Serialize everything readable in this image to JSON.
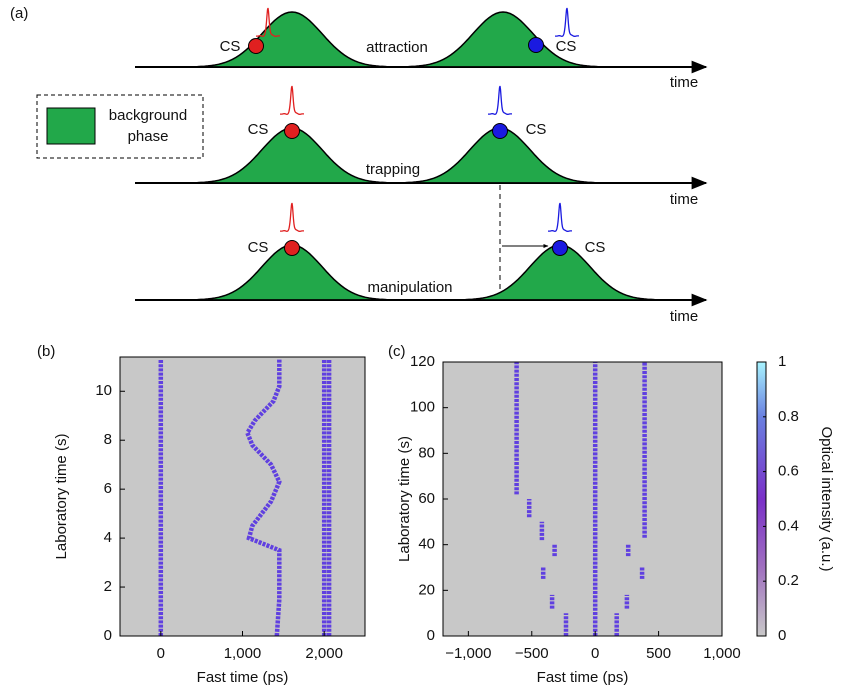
{
  "diagram": {
    "panel_label": "(a)",
    "legend_lines": [
      "background",
      "phase"
    ],
    "rows": [
      {
        "label": "attraction",
        "time_label": "time",
        "cs_labels": [
          "CS",
          "CS"
        ]
      },
      {
        "label": "trapping",
        "time_label": "time",
        "cs_labels": [
          "CS",
          "CS"
        ]
      },
      {
        "label": "manipulation",
        "time_label": "time",
        "cs_labels": [
          "CS",
          "CS"
        ]
      }
    ]
  },
  "chart_data": [
    {
      "type": "line",
      "panel_label": "(b)",
      "xlabel": "Fast time (ps)",
      "ylabel": "Laboratory time (s)",
      "xlim": [
        -500,
        2500
      ],
      "ylim": [
        0,
        11.4
      ],
      "xticks": [
        0,
        {
          "value": 1000,
          "label": "1,000"
        },
        {
          "value": 2000,
          "label": "2,000"
        }
      ],
      "yticks": [
        0,
        2,
        4,
        6,
        8,
        10
      ],
      "series": [
        {
          "color": "#6040e0",
          "x": [
            0,
            0
          ],
          "y": [
            0,
            11.3
          ]
        },
        {
          "color": "#6040e0",
          "x": [
            1420,
            1450,
            1450,
            1080,
            1120,
            1350,
            1450,
            1350,
            1120,
            1060,
            1150,
            1380,
            1450,
            1450
          ],
          "y": [
            0,
            1.5,
            3.5,
            4.0,
            4.5,
            5.5,
            6.3,
            7.0,
            7.8,
            8.3,
            8.8,
            9.6,
            10.2,
            11.3
          ]
        },
        {
          "color": "#6040e0",
          "x": [
            2000,
            2000
          ],
          "y": [
            0,
            11.3
          ]
        },
        {
          "color": "#6040e0",
          "x": [
            2060,
            2060
          ],
          "y": [
            0,
            11.3
          ]
        }
      ]
    },
    {
      "type": "line",
      "panel_label": "(c)",
      "xlabel": "Fast time (ps)",
      "ylabel": "Laboratory time (s)",
      "xlim": [
        -1200,
        1000
      ],
      "ylim": [
        0,
        120
      ],
      "xticks": [
        {
          "value": -1000,
          "label": "−1,000"
        },
        {
          "value": -500,
          "label": "−500"
        },
        0,
        500,
        {
          "value": 1000,
          "label": "1,000"
        }
      ],
      "yticks": [
        0,
        20,
        40,
        60,
        80,
        100,
        120
      ],
      "series": [
        {
          "color": "#6040e0",
          "x": [
            0,
            0
          ],
          "y": [
            0,
            120
          ]
        },
        {
          "color": "#6040e0",
          "x": [
            -230,
            -230,
            null,
            -340,
            -340,
            null,
            -410,
            -410,
            null,
            -320,
            -320,
            null,
            -420,
            -420,
            null,
            -520,
            -520,
            null,
            -620,
            -620
          ],
          "y": [
            0,
            10,
            null,
            12,
            18,
            null,
            25,
            30,
            null,
            35,
            40,
            null,
            42,
            50,
            null,
            52,
            60,
            null,
            62,
            120
          ]
        },
        {
          "color": "#6040e0",
          "x": [
            170,
            170,
            null,
            250,
            250,
            null,
            370,
            370,
            null,
            260,
            260,
            null,
            390,
            390
          ],
          "y": [
            0,
            10,
            null,
            12,
            18,
            null,
            25,
            30,
            null,
            35,
            40,
            null,
            43,
            120
          ]
        }
      ]
    }
  ],
  "colorbar": {
    "label": "Optical intensity (a.u.)",
    "lim": [
      0,
      1
    ],
    "ticks": [
      0,
      0.2,
      0.4,
      0.6,
      0.8,
      1
    ]
  }
}
